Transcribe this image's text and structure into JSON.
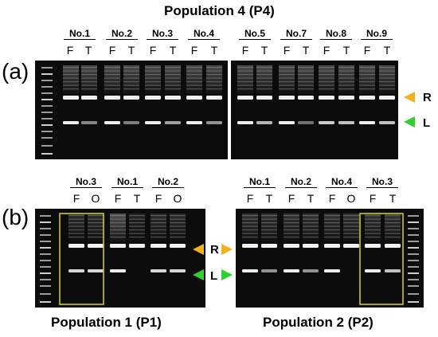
{
  "titles": {
    "top": "Population 4 (P4)",
    "bottom_left": "Population 1 (P1)",
    "bottom_right": "Population 2 (P2)"
  },
  "panel_labels": {
    "a": "(a)",
    "b": "(b)"
  },
  "band_labels": {
    "upper": "R",
    "lower": "L"
  },
  "colors": {
    "upper_marker": "#f5b01e",
    "lower_marker": "#2fd12f",
    "highlight_box": "#d9d51a",
    "gel": "#0c0c0c"
  },
  "panel_a": {
    "left_gel": [
      {
        "sample": "No.1",
        "lanes": [
          "F",
          "T"
        ]
      },
      {
        "sample": "No.2",
        "lanes": [
          "F",
          "T"
        ]
      },
      {
        "sample": "No.3",
        "lanes": [
          "F",
          "T"
        ]
      },
      {
        "sample": "No.4",
        "lanes": [
          "F",
          "T"
        ]
      }
    ],
    "right_gel": [
      {
        "sample": "No.5",
        "lanes": [
          "F",
          "T"
        ]
      },
      {
        "sample": "No.7",
        "lanes": [
          "F",
          "T"
        ]
      },
      {
        "sample": "No.8",
        "lanes": [
          "F",
          "T"
        ]
      },
      {
        "sample": "No.9",
        "lanes": [
          "F",
          "T"
        ]
      }
    ]
  },
  "panel_b": {
    "left_gel": [
      {
        "sample": "No.3",
        "lanes": [
          "F",
          "O"
        ]
      },
      {
        "sample": "No.1",
        "lanes": [
          "F",
          "T"
        ]
      },
      {
        "sample": "No.2",
        "lanes": [
          "F",
          "O"
        ]
      }
    ],
    "right_gel": [
      {
        "sample": "No.1",
        "lanes": [
          "F",
          "T"
        ]
      },
      {
        "sample": "No.2",
        "lanes": [
          "F",
          "T"
        ]
      },
      {
        "sample": "No.4",
        "lanes": [
          "F",
          "O"
        ]
      },
      {
        "sample": "No.3",
        "lanes": [
          "F",
          "T"
        ]
      }
    ]
  }
}
